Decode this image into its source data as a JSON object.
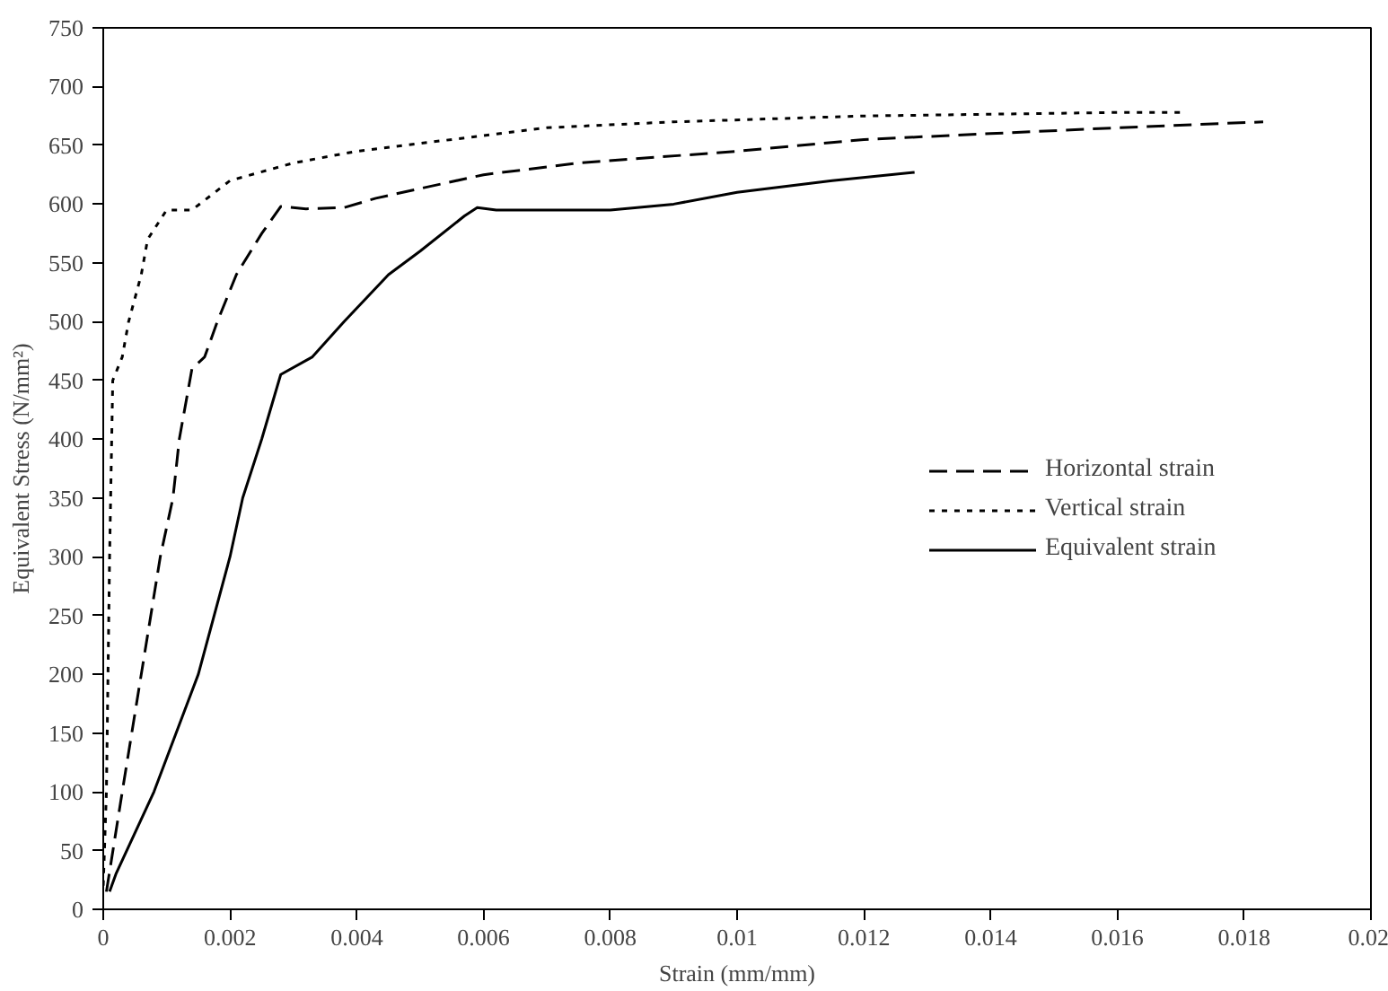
{
  "chart_data": {
    "type": "line",
    "xlabel": "Strain (mm/mm)",
    "ylabel": "Equivalent Stress (N/mm²)",
    "xlim": [
      0,
      0.02
    ],
    "ylim": [
      0,
      750
    ],
    "xticks": [
      0,
      0.002,
      0.004,
      0.006,
      0.008,
      0.01,
      0.012,
      0.014,
      0.016,
      0.018,
      0.02
    ],
    "yticks": [
      0,
      50,
      100,
      150,
      200,
      250,
      300,
      350,
      400,
      450,
      500,
      550,
      600,
      650,
      700,
      750
    ],
    "grid": false,
    "legend": "right",
    "marker": "none",
    "series": [
      {
        "name": "Horizontal strain",
        "color": "#000000",
        "line_style": "dashed",
        "x": [
          5e-05,
          0.0003,
          0.0006,
          0.0009,
          0.0011,
          0.0012,
          0.0014,
          0.0016,
          0.0018,
          0.0021,
          0.0025,
          0.0028,
          0.0032,
          0.0038,
          0.0043,
          0.006,
          0.0075,
          0.01,
          0.012,
          0.014,
          0.016,
          0.0183
        ],
        "values": [
          15,
          100,
          200,
          300,
          350,
          400,
          460,
          470,
          500,
          540,
          575,
          598,
          596,
          597,
          605,
          625,
          635,
          645,
          655,
          660,
          665,
          670
        ]
      },
      {
        "name": "Vertical strain",
        "color": "#000000",
        "line_style": "dotted",
        "x": [
          0,
          5e-05,
          0.0001,
          0.00015,
          0.0003,
          0.0004,
          0.0006,
          0.0007,
          0.001,
          0.0014,
          0.002,
          0.003,
          0.004,
          0.0055,
          0.007,
          0.009,
          0.012,
          0.016,
          0.017
        ],
        "values": [
          20,
          100,
          300,
          450,
          470,
          500,
          540,
          570,
          595,
          595,
          620,
          635,
          645,
          655,
          665,
          670,
          675,
          678,
          678
        ]
      },
      {
        "name": "Equivalent strain",
        "color": "#000000",
        "line_style": "solid",
        "x": [
          0.0001,
          0.0002,
          0.0008,
          0.0015,
          0.002,
          0.0022,
          0.0025,
          0.0028,
          0.0033,
          0.0038,
          0.0045,
          0.005,
          0.0057,
          0.0059,
          0.0062,
          0.008,
          0.009,
          0.01,
          0.0115,
          0.0128
        ],
        "values": [
          15,
          30,
          100,
          200,
          300,
          350,
          400,
          455,
          470,
          500,
          540,
          560,
          590,
          597,
          595,
          595,
          600,
          610,
          620,
          627
        ]
      }
    ]
  }
}
